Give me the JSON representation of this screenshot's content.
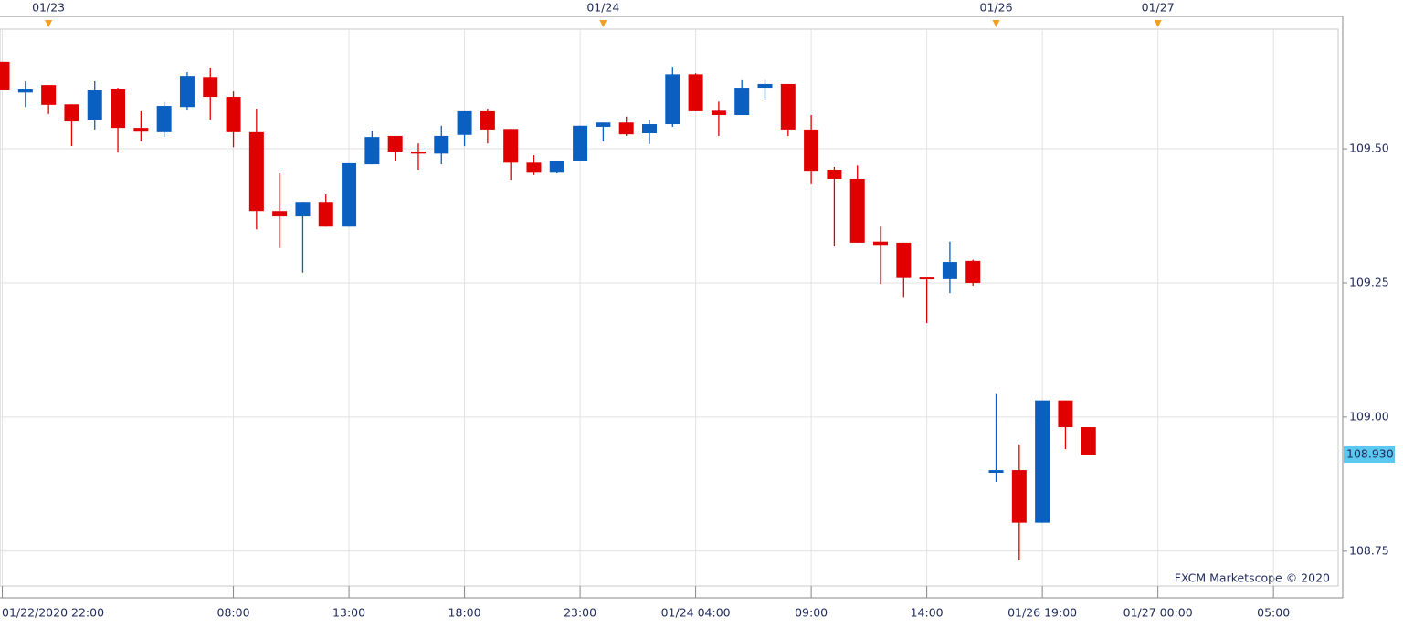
{
  "chart_data": {
    "type": "candlestick",
    "watermark": "FXCM Marketscope © 2020",
    "up_color": "#0b5fc1",
    "down_color": "#e00000",
    "open": [
      109.662,
      109.605,
      109.619,
      109.583,
      109.553,
      109.611,
      109.539,
      109.531,
      109.578,
      109.634,
      109.597,
      109.531,
      109.384,
      109.374,
      109.401,
      109.355,
      109.471,
      109.524,
      109.495,
      109.491,
      109.526,
      109.57,
      109.537,
      109.474,
      109.457,
      109.478,
      109.541,
      109.549,
      109.529,
      109.546,
      109.639,
      109.571,
      109.563,
      109.614,
      109.621,
      109.536,
      109.461,
      109.444,
      109.327,
      109.325,
      109.26,
      109.257,
      109.291,
      108.896,
      108.901,
      108.803,
      109.031,
      108.981
    ],
    "high": [
      109.662,
      109.626,
      109.619,
      109.583,
      109.626,
      109.614,
      109.57,
      109.587,
      109.643,
      109.651,
      109.607,
      109.575,
      109.454,
      109.401,
      109.415,
      109.473,
      109.534,
      109.524,
      109.51,
      109.543,
      109.57,
      109.575,
      109.537,
      109.488,
      109.478,
      109.543,
      109.549,
      109.56,
      109.554,
      109.653,
      109.641,
      109.588,
      109.628,
      109.628,
      109.621,
      109.563,
      109.466,
      109.469,
      109.355,
      109.325,
      109.26,
      109.327,
      109.293,
      109.043,
      108.949,
      109.031,
      109.031,
      108.981
    ],
    "low": [
      109.609,
      109.578,
      109.565,
      109.505,
      109.536,
      109.493,
      109.514,
      109.522,
      109.573,
      109.554,
      109.503,
      109.35,
      109.315,
      109.269,
      109.355,
      109.355,
      109.471,
      109.478,
      109.461,
      109.471,
      109.505,
      109.51,
      109.442,
      109.451,
      109.454,
      109.478,
      109.514,
      109.524,
      109.509,
      109.541,
      109.57,
      109.524,
      109.563,
      109.59,
      109.524,
      109.434,
      109.318,
      109.325,
      109.248,
      109.224,
      109.175,
      109.231,
      109.245,
      108.879,
      108.733,
      108.803,
      108.94,
      108.93
    ],
    "close": [
      109.609,
      109.611,
      109.582,
      109.551,
      109.609,
      109.539,
      109.532,
      109.58,
      109.636,
      109.597,
      109.531,
      109.384,
      109.374,
      109.401,
      109.355,
      109.473,
      109.522,
      109.495,
      109.491,
      109.524,
      109.57,
      109.536,
      109.474,
      109.457,
      109.478,
      109.543,
      109.549,
      109.527,
      109.546,
      109.639,
      109.57,
      109.563,
      109.614,
      109.621,
      109.536,
      109.459,
      109.444,
      109.325,
      109.321,
      109.259,
      109.257,
      109.289,
      109.25,
      108.901,
      108.803,
      109.031,
      108.981,
      108.93
    ],
    "ylim": [
      108.685,
      109.723
    ],
    "yticks": [
      108.75,
      {
        "value": 109.0,
        "label": "109.00"
      },
      109.25,
      {
        "value": 109.5,
        "label": "109.50"
      }
    ],
    "xlim": [
      -0.1,
      57.8
    ],
    "xticks": [
      {
        "value": 0,
        "label": "01/22/2020 22:00"
      },
      {
        "value": 10,
        "label": "08:00"
      },
      {
        "value": 15,
        "label": "13:00"
      },
      {
        "value": 20,
        "label": "18:00"
      },
      {
        "value": 25,
        "label": "23:00"
      },
      {
        "value": 30,
        "label": "01/24 04:00"
      },
      {
        "value": 35,
        "label": "09:00"
      },
      {
        "value": 40,
        "label": "14:00"
      },
      {
        "value": 45,
        "label": "01/26 19:00"
      },
      {
        "value": 50,
        "label": "01/27 00:00"
      },
      {
        "value": 55,
        "label": "05:00"
      }
    ],
    "date_markers": [
      {
        "value": 2,
        "label": "01/23"
      },
      {
        "value": 26,
        "label": "01/24"
      },
      {
        "value": 43,
        "label": "01/26"
      },
      {
        "value": 50,
        "label": "01/27"
      }
    ],
    "last_price": {
      "value": 108.93,
      "label": "108.930"
    },
    "grid": true
  }
}
